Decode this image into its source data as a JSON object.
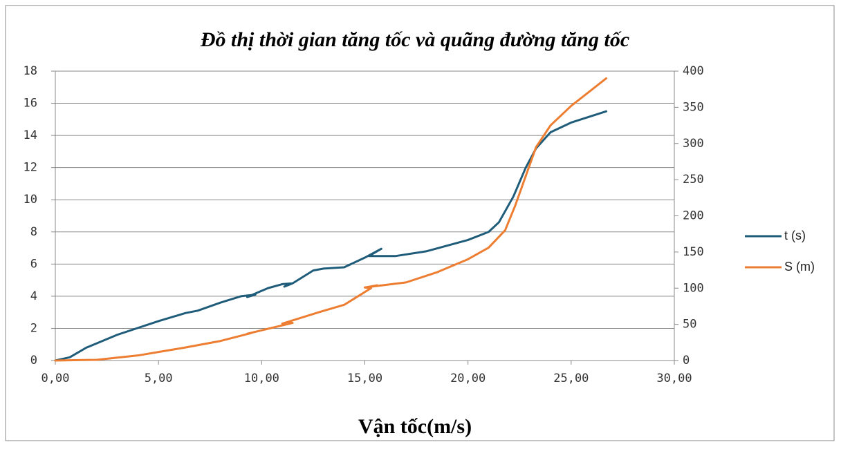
{
  "chart_data": {
    "type": "line",
    "title": "Đồ thị thời gian tăng tốc và quãng đường tăng tốc",
    "x_label": "Vận tốc(m/s)",
    "xlim": [
      0,
      30
    ],
    "xticks": [
      {
        "value": 0,
        "label": "0,00"
      },
      {
        "value": 5,
        "label": "5,00"
      },
      {
        "value": 10,
        "label": "10,00"
      },
      {
        "value": 15,
        "label": "15,00"
      },
      {
        "value": 20,
        "label": "20,00"
      },
      {
        "value": 25,
        "label": "25,00"
      },
      {
        "value": 30,
        "label": "30,00"
      }
    ],
    "ylim": [
      0,
      18
    ],
    "yticks": [
      0,
      2,
      4,
      6,
      8,
      10,
      12,
      14,
      16,
      18
    ],
    "y2lim": [
      0,
      400
    ],
    "y2ticks": [
      0,
      50,
      100,
      150,
      200,
      250,
      300,
      350,
      400
    ],
    "grid": true,
    "legend": "right",
    "series": [
      {
        "name": "t (s)",
        "color": "#1f5c7a",
        "x": [
          0,
          0.7,
          1.5,
          3,
          5,
          6.3,
          6.9,
          8,
          9,
          9.7,
          9.3,
          10.3,
          11,
          11.5,
          11.1,
          11.5,
          12.5,
          13,
          14,
          15,
          15.8,
          15.2,
          16.5,
          18,
          20,
          21,
          21.5,
          22.2,
          22.8,
          23.3,
          24,
          25,
          26.7
        ],
        "values": [
          0,
          0.2,
          0.8,
          1.6,
          2.45,
          2.95,
          3.1,
          3.6,
          4.0,
          4.1,
          3.95,
          4.5,
          4.75,
          4.8,
          4.6,
          4.8,
          5.6,
          5.72,
          5.8,
          6.4,
          6.95,
          6.5,
          6.5,
          6.8,
          7.5,
          8.0,
          8.6,
          10.2,
          12.0,
          13.2,
          14.2,
          14.8,
          15.5
        ]
      },
      {
        "name": "S (m)",
        "color": "#ed7d31",
        "axis": "y2",
        "x": [
          0,
          2,
          4,
          6.3,
          8,
          9.5,
          9.3,
          11.5,
          11,
          12.8,
          14,
          15.3,
          15,
          15.6,
          15.3,
          17,
          18.5,
          20,
          21,
          21.8,
          22.3,
          22.8,
          23.3,
          24,
          25,
          26.7
        ],
        "values": [
          0,
          1,
          7,
          18,
          27,
          38,
          37,
          52,
          51,
          67,
          77,
          100,
          101,
          104,
          102,
          108,
          122,
          140,
          156,
          180,
          215,
          255,
          295,
          325,
          352,
          390
        ]
      }
    ]
  }
}
